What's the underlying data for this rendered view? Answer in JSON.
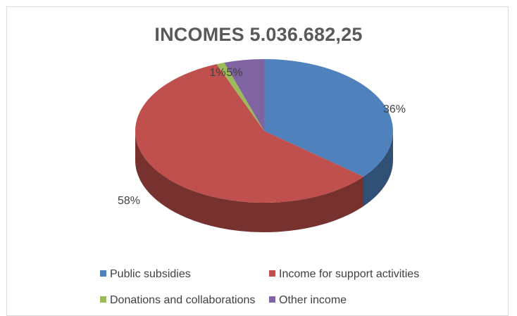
{
  "chart_data": {
    "type": "pie",
    "title": "INCOMES 5.036.682,25",
    "categories": [
      "Public subsidies",
      "Income for support activities",
      "Donations and collaborations",
      "Other income"
    ],
    "values": [
      36,
      58,
      1,
      5
    ],
    "labels": [
      "36%",
      "58%",
      "1%",
      "5%"
    ],
    "colors": [
      "#4f81bd",
      "#c0504d",
      "#9bbb59",
      "#8064a2"
    ],
    "legend_position": "bottom",
    "style": "3d"
  }
}
